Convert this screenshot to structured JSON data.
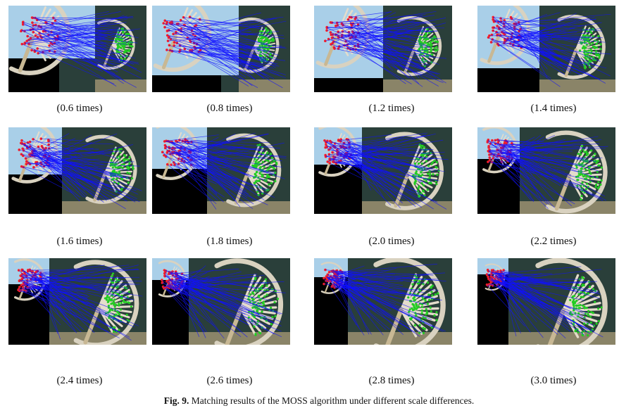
{
  "figure": {
    "number_label": "Fig. 9.",
    "caption_text": "Matching results of the MOSS algorithm under different scale differences."
  },
  "panels": [
    {
      "label": "(0.6 times)"
    },
    {
      "label": "(0.8 times)"
    },
    {
      "label": "(1.2 times)"
    },
    {
      "label": "(1.4 times)"
    },
    {
      "label": "(1.6 times)"
    },
    {
      "label": "(1.8 times)"
    },
    {
      "label": "(2.0 times)"
    },
    {
      "label": "(2.2 times)"
    },
    {
      "label": "(2.4 times)"
    },
    {
      "label": "(2.6 times)"
    },
    {
      "label": "(2.8 times)"
    },
    {
      "label": "(3.0 times)"
    }
  ],
  "colors": {
    "reference_points": "#ff1e1e",
    "sensed_points": "#22cc22",
    "match_lines": "#1010ff",
    "water": "#a9cfe8",
    "sea_dark": "#2a3f3a",
    "sand": "#c8b894"
  }
}
